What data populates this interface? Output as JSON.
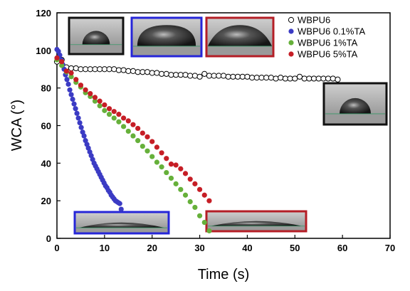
{
  "chart_data": {
    "type": "scatter",
    "xlabel": "Time (s)",
    "ylabel": "WCA (°)",
    "xlim": [
      0,
      70
    ],
    "ylim": [
      0,
      120
    ],
    "xticks": [
      0,
      10,
      20,
      30,
      40,
      50,
      60,
      70
    ],
    "yticks": [
      0,
      20,
      40,
      60,
      80,
      100,
      120
    ],
    "grid": false,
    "legend_position": "top-right",
    "series": [
      {
        "name": "WBPU6",
        "color": "#000000",
        "fill": "#ffffff",
        "marker": "open-circle",
        "x": [
          0,
          1,
          2,
          3,
          4,
          5,
          6,
          7,
          8,
          9,
          10,
          11,
          12,
          13,
          14,
          15,
          16,
          17,
          18,
          19,
          20,
          21,
          22,
          23,
          24,
          25,
          26,
          27,
          28,
          29,
          30,
          31,
          32,
          33,
          34,
          35,
          36,
          37,
          38,
          39,
          40,
          41,
          42,
          43,
          44,
          45,
          46,
          47,
          48,
          49,
          50,
          51,
          52,
          53,
          54,
          55,
          56,
          57,
          58,
          59
        ],
        "y": [
          94,
          95,
          91,
          90.5,
          90.5,
          90,
          90,
          90,
          90,
          90,
          90,
          90,
          90,
          89.5,
          89.5,
          89,
          89,
          88.5,
          88.5,
          88.5,
          88,
          88,
          87.5,
          87.5,
          87,
          87,
          87,
          87,
          86.5,
          86.5,
          86,
          87.5,
          86.5,
          86.5,
          86.5,
          86.5,
          86,
          86,
          86,
          86,
          86,
          85.5,
          85.5,
          85.5,
          85.5,
          85.5,
          85,
          85.5,
          85,
          85,
          85,
          86,
          85,
          85,
          85,
          85,
          85,
          85,
          85,
          84.5
        ]
      },
      {
        "name": "WBPU6 0.1%TA",
        "color": "#3b3bc4",
        "fill": "#3b3bc4",
        "marker": "filled-circle",
        "x": [
          0,
          0.3,
          0.6,
          0.9,
          1.2,
          1.5,
          1.8,
          2.1,
          2.4,
          2.7,
          3.0,
          3.3,
          3.6,
          3.9,
          4.2,
          4.5,
          4.8,
          5.1,
          5.4,
          5.7,
          6.0,
          6.3,
          6.6,
          6.9,
          7.2,
          7.5,
          7.8,
          8.1,
          8.4,
          8.7,
          9.0,
          9.3,
          9.6,
          9.9,
          10.2,
          10.5,
          10.8,
          11.1,
          11.4,
          11.7,
          12.0,
          12.3,
          12.6,
          12.9,
          13.2,
          13.5
        ],
        "y": [
          100.5,
          99.5,
          97.5,
          95,
          92.5,
          90,
          87,
          84.5,
          82,
          79,
          76.5,
          74,
          71.5,
          69,
          66.5,
          64,
          61.5,
          59,
          56.5,
          54.5,
          52,
          50,
          48,
          46,
          44,
          42,
          40,
          38.5,
          37,
          35.5,
          34,
          32.5,
          31,
          29.5,
          28,
          27,
          25.5,
          24.5,
          23,
          22,
          21,
          20,
          19.5,
          19,
          18.5,
          15.5
        ]
      },
      {
        "name": "WBPU6 1%TA",
        "color": "#66b03a",
        "fill": "#66b03a",
        "marker": "filled-circle",
        "x": [
          0,
          1,
          2,
          3,
          4,
          5,
          6,
          7,
          8,
          9,
          10,
          11,
          12,
          13,
          14,
          15,
          16,
          17,
          18,
          19,
          20,
          21,
          22,
          23,
          24,
          25,
          26,
          27,
          28,
          29,
          30,
          31,
          32
        ],
        "y": [
          95,
          92,
          88.5,
          86,
          83,
          80.5,
          77.5,
          75.5,
          73,
          70.5,
          68,
          66,
          64,
          62,
          59.5,
          57,
          54.5,
          52,
          49,
          46.5,
          43.5,
          40.5,
          38,
          35,
          32,
          29,
          26,
          23,
          19.5,
          16.5,
          12,
          8.5,
          4
        ]
      },
      {
        "name": "WBPU6 5%TA",
        "color": "#c61e26",
        "fill": "#c61e26",
        "marker": "filled-circle",
        "x": [
          0,
          1,
          2,
          3,
          4,
          5,
          6,
          7,
          8,
          9,
          10,
          11,
          12,
          13,
          14,
          15,
          16,
          17,
          18,
          19,
          20,
          21,
          22,
          23,
          24,
          25,
          26,
          27,
          28,
          29,
          30,
          31,
          32
        ],
        "y": [
          96,
          94,
          89,
          88,
          84.5,
          81.5,
          79,
          77,
          75,
          73,
          71,
          69,
          67.5,
          66,
          64,
          62.5,
          60.5,
          58.5,
          56,
          54,
          51.5,
          48.5,
          45.5,
          42.5,
          39.5,
          39,
          37,
          34.5,
          31.5,
          29,
          26,
          23,
          20
        ]
      }
    ],
    "insets": [
      {
        "name": "wbpu6-start-droplet",
        "border": "#111111",
        "type": "sessile-high"
      },
      {
        "name": "wbpu6-01ta-start-droplet",
        "border": "#2626d8",
        "type": "sessile-mid"
      },
      {
        "name": "wbpu6-5ta-start-droplet",
        "border": "#b41e26",
        "type": "sessile-flat"
      },
      {
        "name": "wbpu6-end-droplet",
        "border": "#111111",
        "type": "sessile-high"
      },
      {
        "name": "wbpu6-01ta-end-droplet",
        "border": "#2626d8",
        "type": "spread"
      },
      {
        "name": "wbpu6-5ta-end-droplet",
        "border": "#b41e26",
        "type": "spread"
      }
    ]
  }
}
